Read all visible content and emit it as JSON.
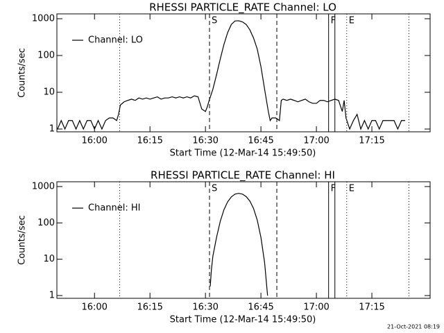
{
  "chart_data": [
    {
      "type": "line",
      "title": "RHESSI PARTICLE_RATE Channel: LO",
      "xlabel": "Start Time (12-Mar-14 15:49:50)",
      "ylabel": "Counts/sec",
      "yscale": "log",
      "xlim": [
        949.83,
        1050.75
      ],
      "ylim": [
        0.84,
        1355
      ],
      "xticks": [
        {
          "value": 960,
          "label": "16:00"
        },
        {
          "value": 975,
          "label": "16:15"
        },
        {
          "value": 990,
          "label": "16:30"
        },
        {
          "value": 1005,
          "label": "16:45"
        },
        {
          "value": 1020,
          "label": "17:00"
        },
        {
          "value": 1035,
          "label": "17:15"
        }
      ],
      "yticks": [
        1,
        10,
        100,
        1000
      ],
      "legend": "upper left",
      "markers": [
        {
          "x": 966.8,
          "style": "dotted"
        },
        {
          "x": 991.1,
          "style": "dashed",
          "label": "S"
        },
        {
          "x": 1009.3,
          "style": "dashed"
        },
        {
          "x": 1023.3,
          "style": "solid",
          "label": "F"
        },
        {
          "x": 1025.0,
          "style": "solid"
        },
        {
          "x": 1028.2,
          "style": "dotted",
          "label": "E"
        },
        {
          "x": 1045.0,
          "style": "dotted"
        }
      ],
      "series": [
        {
          "name": "Channel: LO",
          "color": "#000000",
          "x": [
            950,
            951,
            952,
            953,
            954,
            955,
            956,
            957,
            958,
            959,
            960,
            961,
            962,
            963,
            964,
            965,
            966,
            966.5,
            967,
            968,
            969,
            970,
            971,
            972,
            973,
            974,
            975,
            976,
            977,
            978,
            979,
            980,
            981,
            982,
            983,
            984,
            985,
            986,
            987,
            988,
            989,
            990,
            990.5,
            991,
            992,
            993,
            994,
            995,
            996,
            997,
            998,
            999,
            1000,
            1001,
            1002,
            1003,
            1004,
            1005,
            1006,
            1007,
            1007.5,
            1008,
            1009,
            1010,
            1010.5,
            1011,
            1012,
            1013,
            1014,
            1015,
            1016,
            1017,
            1018,
            1019,
            1020,
            1021,
            1022,
            1023,
            1024,
            1025,
            1026,
            1027,
            1027.5,
            1028,
            1029,
            1030,
            1031,
            1032,
            1033,
            1034,
            1035,
            1036,
            1037,
            1038,
            1039,
            1040,
            1041,
            1042,
            1043,
            1044
          ],
          "values": [
            1,
            1.7,
            1,
            1.7,
            1.7,
            1,
            1.7,
            1,
            1.7,
            1.7,
            1,
            1.7,
            1,
            1.7,
            2,
            2,
            1.7,
            2.5,
            4.5,
            5.5,
            6,
            6.5,
            6,
            7,
            6.5,
            7,
            6.5,
            7,
            7.5,
            6.5,
            7,
            7,
            7.5,
            7,
            7.5,
            7,
            7.5,
            7,
            8,
            7.5,
            3.5,
            3,
            4,
            6,
            12,
            30,
            80,
            200,
            420,
            700,
            870,
            880,
            820,
            700,
            500,
            300,
            150,
            50,
            12,
            3,
            1.7,
            2,
            2,
            1.7,
            6,
            6.5,
            6,
            6.5,
            6,
            5.5,
            6,
            6.5,
            5.5,
            5,
            5,
            6,
            6,
            5.5,
            6,
            6.5,
            6,
            3,
            6,
            2,
            1,
            1.7,
            2.5,
            1,
            1.7,
            1,
            1.7,
            1.7,
            1,
            1.7,
            1.7,
            1.7,
            1.7,
            1,
            1.7,
            1.7
          ]
        }
      ]
    },
    {
      "type": "line",
      "title": "RHESSI PARTICLE_RATE Channel: HI",
      "xlabel": "Start Time (12-Mar-14 15:49:50)",
      "ylabel": "Counts/sec",
      "yscale": "log",
      "xlim": [
        949.83,
        1050.75
      ],
      "ylim": [
        0.84,
        1355
      ],
      "xticks": [
        {
          "value": 960,
          "label": "16:00"
        },
        {
          "value": 975,
          "label": "16:15"
        },
        {
          "value": 990,
          "label": "16:30"
        },
        {
          "value": 1005,
          "label": "16:45"
        },
        {
          "value": 1020,
          "label": "17:00"
        },
        {
          "value": 1035,
          "label": "17:15"
        }
      ],
      "yticks": [
        1,
        10,
        100,
        1000
      ],
      "legend": "upper left",
      "markers": [
        {
          "x": 966.8,
          "style": "dotted"
        },
        {
          "x": 991.1,
          "style": "dashed",
          "label": "S"
        },
        {
          "x": 1009.3,
          "style": "dashed"
        },
        {
          "x": 1023.3,
          "style": "solid",
          "label": "F"
        },
        {
          "x": 1025.0,
          "style": "solid"
        },
        {
          "x": 1028.2,
          "style": "dotted",
          "label": "E"
        },
        {
          "x": 1045.0,
          "style": "dotted"
        }
      ],
      "series": [
        {
          "name": "Channel: HI",
          "color": "#000000",
          "x": [
            991.3,
            991.6,
            992,
            993,
            994,
            995,
            996,
            997,
            998,
            999,
            1000,
            1001,
            1002,
            1003,
            1004,
            1005,
            1006,
            1006.8
          ],
          "values": [
            1.8,
            5,
            12,
            40,
            110,
            230,
            380,
            520,
            620,
            650,
            620,
            530,
            400,
            250,
            120,
            40,
            8,
            1
          ]
        }
      ]
    }
  ],
  "footer": "21-Oct-2021 08:19"
}
